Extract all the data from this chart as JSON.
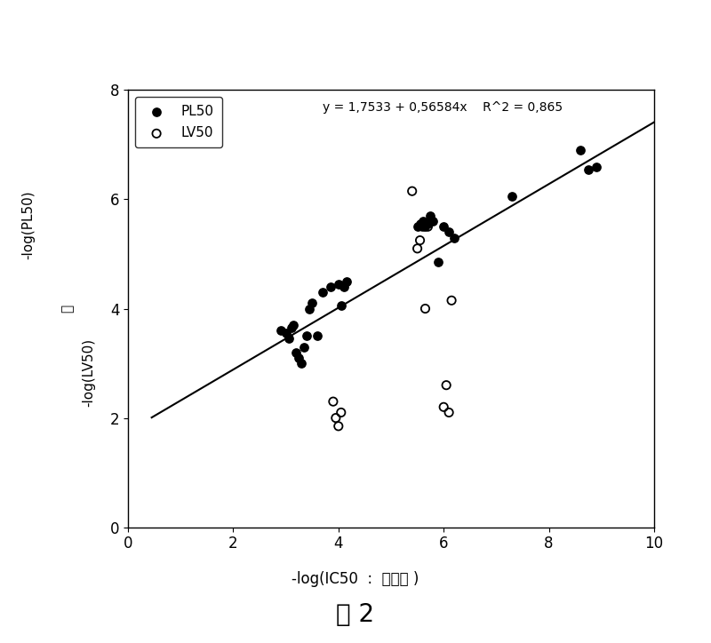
{
  "pl50_x": [
    2.9,
    3.0,
    3.05,
    3.1,
    3.15,
    3.2,
    3.25,
    3.3,
    3.35,
    3.4,
    3.45,
    3.5,
    3.6,
    3.7,
    3.85,
    4.0,
    4.05,
    4.1,
    4.15,
    5.5,
    5.55,
    5.6,
    5.65,
    5.7,
    5.75,
    5.8,
    5.9,
    6.0,
    6.1,
    6.2,
    7.3,
    8.6,
    8.75,
    8.9
  ],
  "pl50_y": [
    3.6,
    3.55,
    3.45,
    3.65,
    3.7,
    3.2,
    3.1,
    3.0,
    3.3,
    3.5,
    4.0,
    4.1,
    3.5,
    4.3,
    4.4,
    4.45,
    4.05,
    4.4,
    4.5,
    5.5,
    5.55,
    5.6,
    5.5,
    5.55,
    5.7,
    5.6,
    4.85,
    5.5,
    5.4,
    5.3,
    6.05,
    6.9,
    6.55,
    6.6
  ],
  "lv50_x": [
    3.9,
    3.95,
    4.0,
    4.05,
    5.4,
    5.5,
    5.55,
    5.6,
    5.65,
    5.7,
    6.0,
    6.05,
    6.1,
    6.15
  ],
  "lv50_y": [
    2.3,
    2.0,
    1.85,
    2.1,
    6.15,
    5.1,
    5.25,
    5.5,
    4.0,
    5.5,
    2.2,
    2.6,
    2.1,
    4.15
  ],
  "line_x": [
    0.45,
    10.0
  ],
  "intercept": 1.7533,
  "slope": 0.56584,
  "equation_text": "y = 1,7533 + 0,56584x    R^2 = 0,865",
  "xlabel_ascii": "-log(IC50  :  ",
  "xlabel_cjk": "疾原虫",
  "xlabel_end": " )",
  "ylabel_top": "-log(PL50)",
  "ylabel_mid": "或",
  "ylabel_bot": "-log(LV50)",
  "title_cjk": "图",
  "title_num": " 2",
  "xlim": [
    0,
    10
  ],
  "ylim": [
    0,
    8
  ],
  "xticks": [
    0,
    2,
    4,
    6,
    8,
    10
  ],
  "yticks": [
    0,
    2,
    4,
    6,
    8
  ],
  "legend_pl50": "PL50",
  "legend_lv50": "LV50",
  "marker_size": 45,
  "line_color": "black",
  "background_color": "white"
}
